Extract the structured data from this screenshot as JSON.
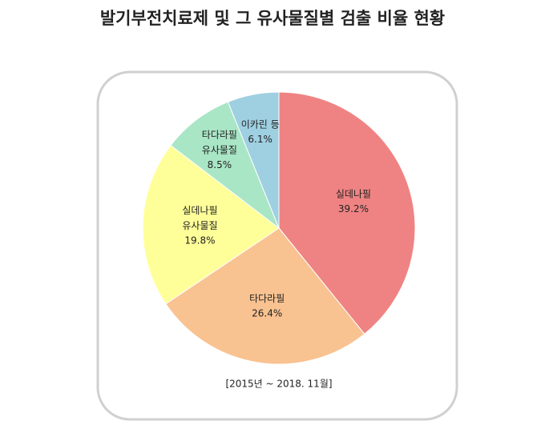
{
  "chart_data": {
    "type": "pie",
    "title": "발기부전치료제 및 그 유사물질별 검출 비율 현황",
    "note": "[2015년 ~ 2018. 11월]",
    "categories": [
      "실데나필",
      "타다라필",
      "실데나필\n유사물질",
      "타다라필\n유사물질",
      "이카린 등"
    ],
    "values": [
      39.2,
      26.4,
      19.8,
      8.5,
      6.1
    ],
    "value_labels": [
      "39.2%",
      "26.4%",
      "19.8%",
      "8.5%",
      "6.1%"
    ],
    "colors": [
      "#ef8383",
      "#f9c291",
      "#ffff99",
      "#a9e6c6",
      "#9fd0e2"
    ]
  }
}
